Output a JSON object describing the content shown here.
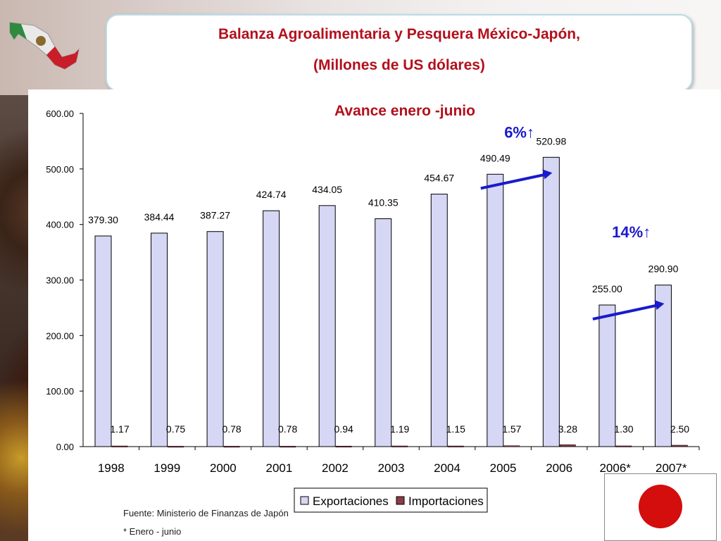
{
  "title": {
    "line1": "Balanza Agroalimentaria y Pesquera México-Japón,",
    "line2": "(Millones de US dólares)"
  },
  "chart_data": {
    "type": "bar",
    "title": "Avance enero -junio",
    "categories": [
      "1998",
      "1999",
      "2000",
      "2001",
      "2002",
      "2003",
      "2004",
      "2005",
      "2006",
      "2006*",
      "2007*"
    ],
    "series": [
      {
        "name": "Exportaciones",
        "values": [
          379.3,
          384.44,
          387.27,
          424.74,
          434.05,
          410.35,
          454.67,
          490.49,
          520.98,
          255.0,
          290.9
        ],
        "labels": [
          "379.30",
          "384.44",
          "387.27",
          "424.74",
          "434.05",
          "410.35",
          "454.67",
          "490.49",
          "520.98",
          "255.00",
          "290.90"
        ]
      },
      {
        "name": "Importaciones",
        "values": [
          1.17,
          0.75,
          0.78,
          0.78,
          0.94,
          1.19,
          1.15,
          1.57,
          3.28,
          1.3,
          2.5
        ],
        "labels": [
          "1.17",
          "0.75",
          "0.78",
          "0.78",
          "0.94",
          "1.19",
          "1.15",
          "1.57",
          "3.28",
          "1.30",
          "2.50"
        ]
      }
    ],
    "ylim": [
      0,
      600
    ],
    "yticks": [
      "0.00",
      "100.00",
      "200.00",
      "300.00",
      "400.00",
      "500.00",
      "600.00"
    ],
    "legend_position": "bottom",
    "annotations": [
      {
        "text": "6%↑",
        "from": "2005",
        "to": "2006"
      },
      {
        "text": "14%↑",
        "from": "2006*",
        "to": "2007*"
      }
    ],
    "colors": {
      "exports": "#d6d6f5",
      "imports": "#8c3a4a",
      "title": "#b30f1c",
      "annotation": "#1a1acc"
    }
  },
  "footer": {
    "source": "Fuente: Ministerio de Finanzas de Japón",
    "note": "* Enero - junio"
  }
}
